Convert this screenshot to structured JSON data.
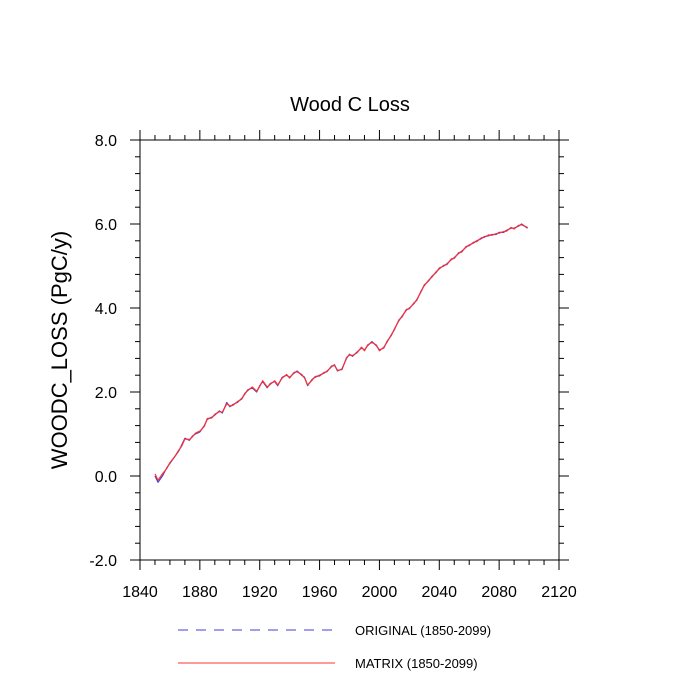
{
  "chart_data": {
    "type": "line",
    "title": "Wood C Loss",
    "xlabel": "",
    "ylabel": "WOODC_LOSS  (PgC/y)",
    "xlim": [
      1840,
      2120
    ],
    "ylim": [
      -2.0,
      8.0
    ],
    "x_ticks": [
      1840,
      1880,
      1920,
      1960,
      2000,
      2040,
      2080,
      2120
    ],
    "x_tick_labels": [
      "1840",
      "1880",
      "1920",
      "1960",
      "2000",
      "2040",
      "2080",
      "2120"
    ],
    "y_ticks": [
      -2.0,
      0.0,
      2.0,
      4.0,
      6.0,
      8.0
    ],
    "y_tick_labels": [
      "-2.0",
      "0.0",
      "2.0",
      "4.0",
      "6.0",
      "8.0"
    ],
    "grid": false,
    "legend_position": "bottom",
    "x": [
      1850,
      1852,
      1855,
      1858,
      1860,
      1863,
      1866,
      1868,
      1870,
      1873,
      1875,
      1877,
      1880,
      1883,
      1885,
      1888,
      1890,
      1893,
      1895,
      1898,
      1900,
      1902,
      1905,
      1908,
      1910,
      1912,
      1915,
      1918,
      1920,
      1922,
      1925,
      1927,
      1930,
      1932,
      1935,
      1938,
      1940,
      1943,
      1945,
      1948,
      1950,
      1952,
      1955,
      1957,
      1960,
      1963,
      1965,
      1968,
      1970,
      1972,
      1975,
      1978,
      1980,
      1982,
      1985,
      1988,
      1990,
      1992,
      1995,
      1998,
      2000,
      2003,
      2005,
      2008,
      2010,
      2013,
      2015,
      2018,
      2020,
      2023,
      2025,
      2028,
      2030,
      2033,
      2035,
      2038,
      2040,
      2043,
      2045,
      2048,
      2050,
      2053,
      2055,
      2058,
      2060,
      2063,
      2065,
      2068,
      2070,
      2073,
      2075,
      2078,
      2080,
      2083,
      2085,
      2088,
      2090,
      2093,
      2095,
      2099
    ],
    "series": [
      {
        "name": "ORIGINAL (1850-2099)",
        "color": "#4040d0",
        "dash": "dashed",
        "values": [
          0.0,
          -0.15,
          0.0,
          0.2,
          0.3,
          0.45,
          0.6,
          0.75,
          0.9,
          0.85,
          0.95,
          1.0,
          1.05,
          1.2,
          1.35,
          1.4,
          1.45,
          1.55,
          1.5,
          1.75,
          1.65,
          1.7,
          1.75,
          1.85,
          1.95,
          2.05,
          2.1,
          2.0,
          2.15,
          2.25,
          2.1,
          2.2,
          2.25,
          2.15,
          2.35,
          2.4,
          2.35,
          2.45,
          2.5,
          2.4,
          2.35,
          2.15,
          2.3,
          2.35,
          2.4,
          2.45,
          2.5,
          2.6,
          2.65,
          2.5,
          2.55,
          2.8,
          2.9,
          2.85,
          2.95,
          3.05,
          3.0,
          3.1,
          3.2,
          3.1,
          3.0,
          3.05,
          3.2,
          3.35,
          3.5,
          3.7,
          3.8,
          3.95,
          4.0,
          4.1,
          4.2,
          4.4,
          4.55,
          4.65,
          4.75,
          4.85,
          4.95,
          5.0,
          5.05,
          5.15,
          5.2,
          5.3,
          5.35,
          5.45,
          5.5,
          5.55,
          5.6,
          5.65,
          5.7,
          5.72,
          5.75,
          5.75,
          5.8,
          5.8,
          5.85,
          5.9,
          5.9,
          5.95,
          6.0,
          5.9
        ]
      },
      {
        "name": "MATRIX (1850-2099)",
        "color": "#ff3030",
        "dash": "solid",
        "values": [
          0.05,
          -0.1,
          0.05,
          0.18,
          0.32,
          0.45,
          0.62,
          0.72,
          0.88,
          0.87,
          0.93,
          1.02,
          1.07,
          1.18,
          1.37,
          1.38,
          1.47,
          1.53,
          1.52,
          1.72,
          1.67,
          1.68,
          1.77,
          1.83,
          1.97,
          2.03,
          2.12,
          2.02,
          2.13,
          2.27,
          2.12,
          2.18,
          2.27,
          2.17,
          2.33,
          2.42,
          2.33,
          2.47,
          2.48,
          2.42,
          2.33,
          2.17,
          2.28,
          2.37,
          2.38,
          2.47,
          2.48,
          2.62,
          2.63,
          2.52,
          2.53,
          2.82,
          2.88,
          2.87,
          2.93,
          3.07,
          2.98,
          3.12,
          3.18,
          3.12,
          2.98,
          3.07,
          3.18,
          3.37,
          3.48,
          3.72,
          3.78,
          3.97,
          3.98,
          4.12,
          4.18,
          4.42,
          4.53,
          4.67,
          4.73,
          4.87,
          4.93,
          5.02,
          5.03,
          5.17,
          5.18,
          5.32,
          5.33,
          5.47,
          5.48,
          5.57,
          5.58,
          5.67,
          5.68,
          5.74,
          5.73,
          5.77,
          5.78,
          5.82,
          5.83,
          5.92,
          5.88,
          5.97,
          5.98,
          5.92
        ]
      }
    ]
  }
}
